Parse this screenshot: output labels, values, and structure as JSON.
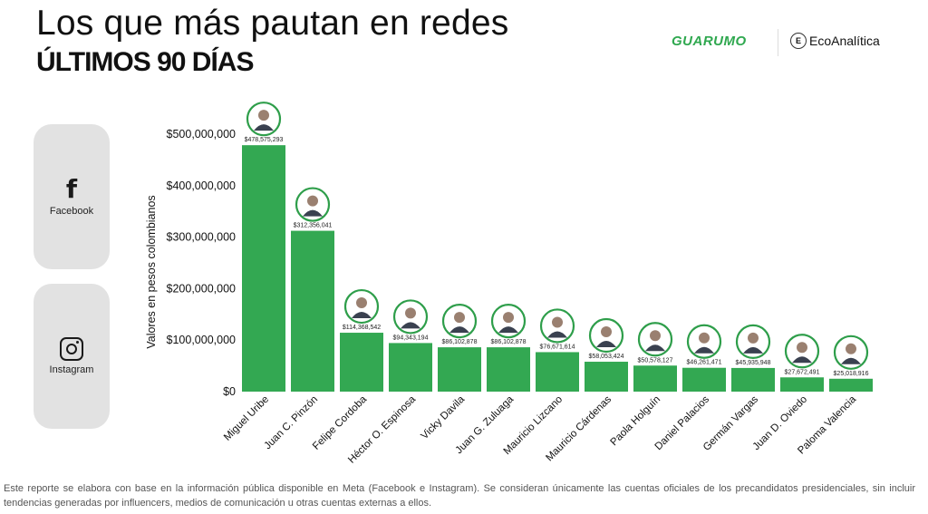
{
  "header": {
    "title": "Los que más pautan en redes",
    "subtitle": "ÚLTIMOS 90 DÍAS",
    "brand_primary": "GUARUMO",
    "brand_secondary": "EcoAnalítica"
  },
  "platforms": [
    {
      "label": "Facebook",
      "icon": "facebook-icon"
    },
    {
      "label": "Instagram",
      "icon": "instagram-icon"
    }
  ],
  "colors": {
    "bar": "#33a852",
    "ring": "#2e9e4a",
    "platform_bg": "#e2e2e2"
  },
  "chart_data": {
    "type": "bar",
    "title": "",
    "xlabel": "",
    "ylabel": "Valores en pesos colombianos",
    "ylim": [
      0,
      500000000
    ],
    "yticks": [
      0,
      100000000,
      200000000,
      300000000,
      400000000,
      500000000
    ],
    "ytick_labels": [
      "$0",
      "$100,000,000",
      "$200,000,000",
      "$300,000,000",
      "$400,000,000",
      "$500,000,000"
    ],
    "grid": false,
    "categories": [
      "Miguel Uribe",
      "Juan C. Pinzón",
      "Felipe Cordoba",
      "Héctor O. Espinosa",
      "Vicky Davila",
      "Juan G. Zuluaga",
      "Mauricio Lizcano",
      "Mauricio Cárdenas",
      "Paola Holguín",
      "Daniel Palacios",
      "Germán Vargas",
      "Juan D. Oviedo",
      "Paloma Valencia"
    ],
    "values": [
      478575293,
      312356041,
      114368542,
      94343194,
      86102878,
      86102878,
      76671614,
      58053424,
      50578127,
      46261471,
      45935948,
      27672491,
      25018916
    ],
    "value_labels": [
      "$478,575,293",
      "$312,356,041",
      "$114,368,542",
      "$94,343,194",
      "$86,102,878",
      "$86,102,878",
      "$76,671,614",
      "$58,053,424",
      "$50,578,127",
      "$46,261,471",
      "$45,935,948",
      "$27,672,491",
      "$25,018,916"
    ]
  },
  "footer": {
    "note": "Este reporte se elabora con base en la información pública disponible en Meta (Facebook e Instagram). Se consideran únicamente las cuentas oficiales de los precandidatos presidenciales, sin incluir tendencias generadas por influencers, medios de comunicación u otras cuentas externas a ellos."
  }
}
